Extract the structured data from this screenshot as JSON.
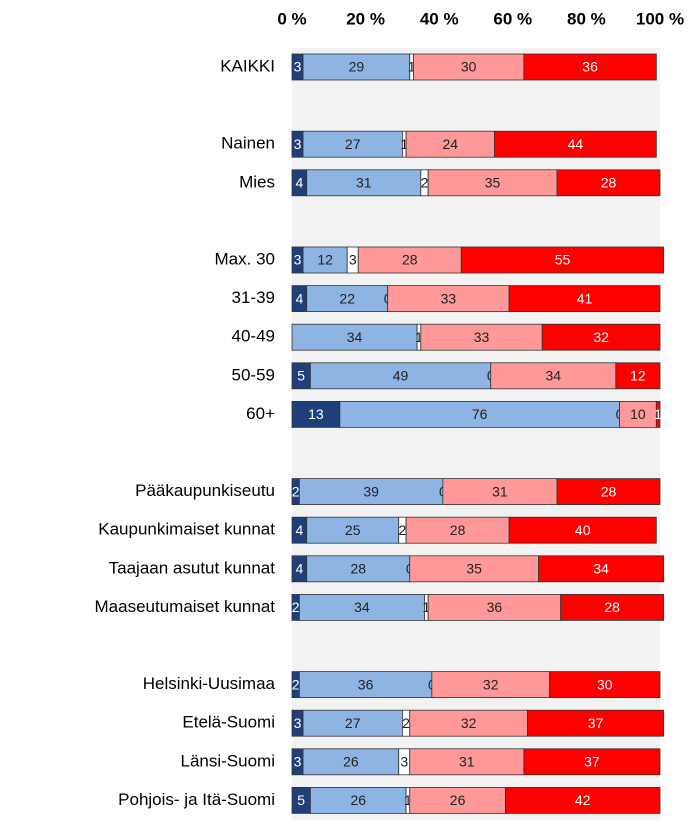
{
  "chart_data": {
    "type": "stacked-bar",
    "categories": [
      "KAIKKI",
      null,
      "Nainen",
      "Mies",
      null,
      "Max. 30",
      "31-39",
      "40-49",
      "50-59",
      "60+",
      null,
      "Pääkaupunkiseutu",
      "Kaupunkimaiset kunnat",
      "Taajaan asutut kunnat",
      "Maaseutumaiset kunnat",
      null,
      "Helsinki-Uusimaa",
      "Etelä-Suomi",
      "Länsi-Suomi",
      "Pohjois- ja Itä-Suomi"
    ],
    "series": [
      {
        "color": "#1f3f7a",
        "values": [
          3,
          null,
          3,
          4,
          null,
          3,
          4,
          0,
          5,
          13,
          null,
          2,
          4,
          4,
          2,
          null,
          2,
          3,
          3,
          5
        ]
      },
      {
        "color": "#8eb4e3",
        "values": [
          29,
          null,
          27,
          31,
          null,
          12,
          22,
          34,
          49,
          76,
          null,
          39,
          25,
          28,
          34,
          null,
          36,
          27,
          26,
          26
        ]
      },
      {
        "color": "#ffffff",
        "values": [
          1,
          null,
          1,
          2,
          null,
          3,
          0,
          1,
          0,
          0,
          null,
          0,
          2,
          0,
          1,
          null,
          0,
          2,
          3,
          1
        ]
      },
      {
        "color": "#ff9999",
        "values": [
          30,
          null,
          24,
          35,
          null,
          28,
          33,
          33,
          34,
          10,
          null,
          31,
          28,
          35,
          36,
          null,
          32,
          32,
          31,
          26
        ]
      },
      {
        "color": "#ff0000",
        "values": [
          36,
          null,
          44,
          28,
          null,
          55,
          41,
          32,
          12,
          1,
          null,
          28,
          40,
          34,
          28,
          null,
          30,
          37,
          37,
          42
        ]
      }
    ],
    "xlim": [
      0,
      100
    ],
    "xticks": [
      {
        "value": 0,
        "label": "0 %"
      },
      {
        "value": 20,
        "label": "20 %"
      },
      {
        "value": 40,
        "label": "40 %"
      },
      {
        "value": 60,
        "label": "60 %"
      },
      {
        "value": 80,
        "label": "80 %"
      },
      {
        "value": 100,
        "label": "100 %"
      }
    ],
    "tick_position": "top",
    "background": "#f2f2f2"
  }
}
